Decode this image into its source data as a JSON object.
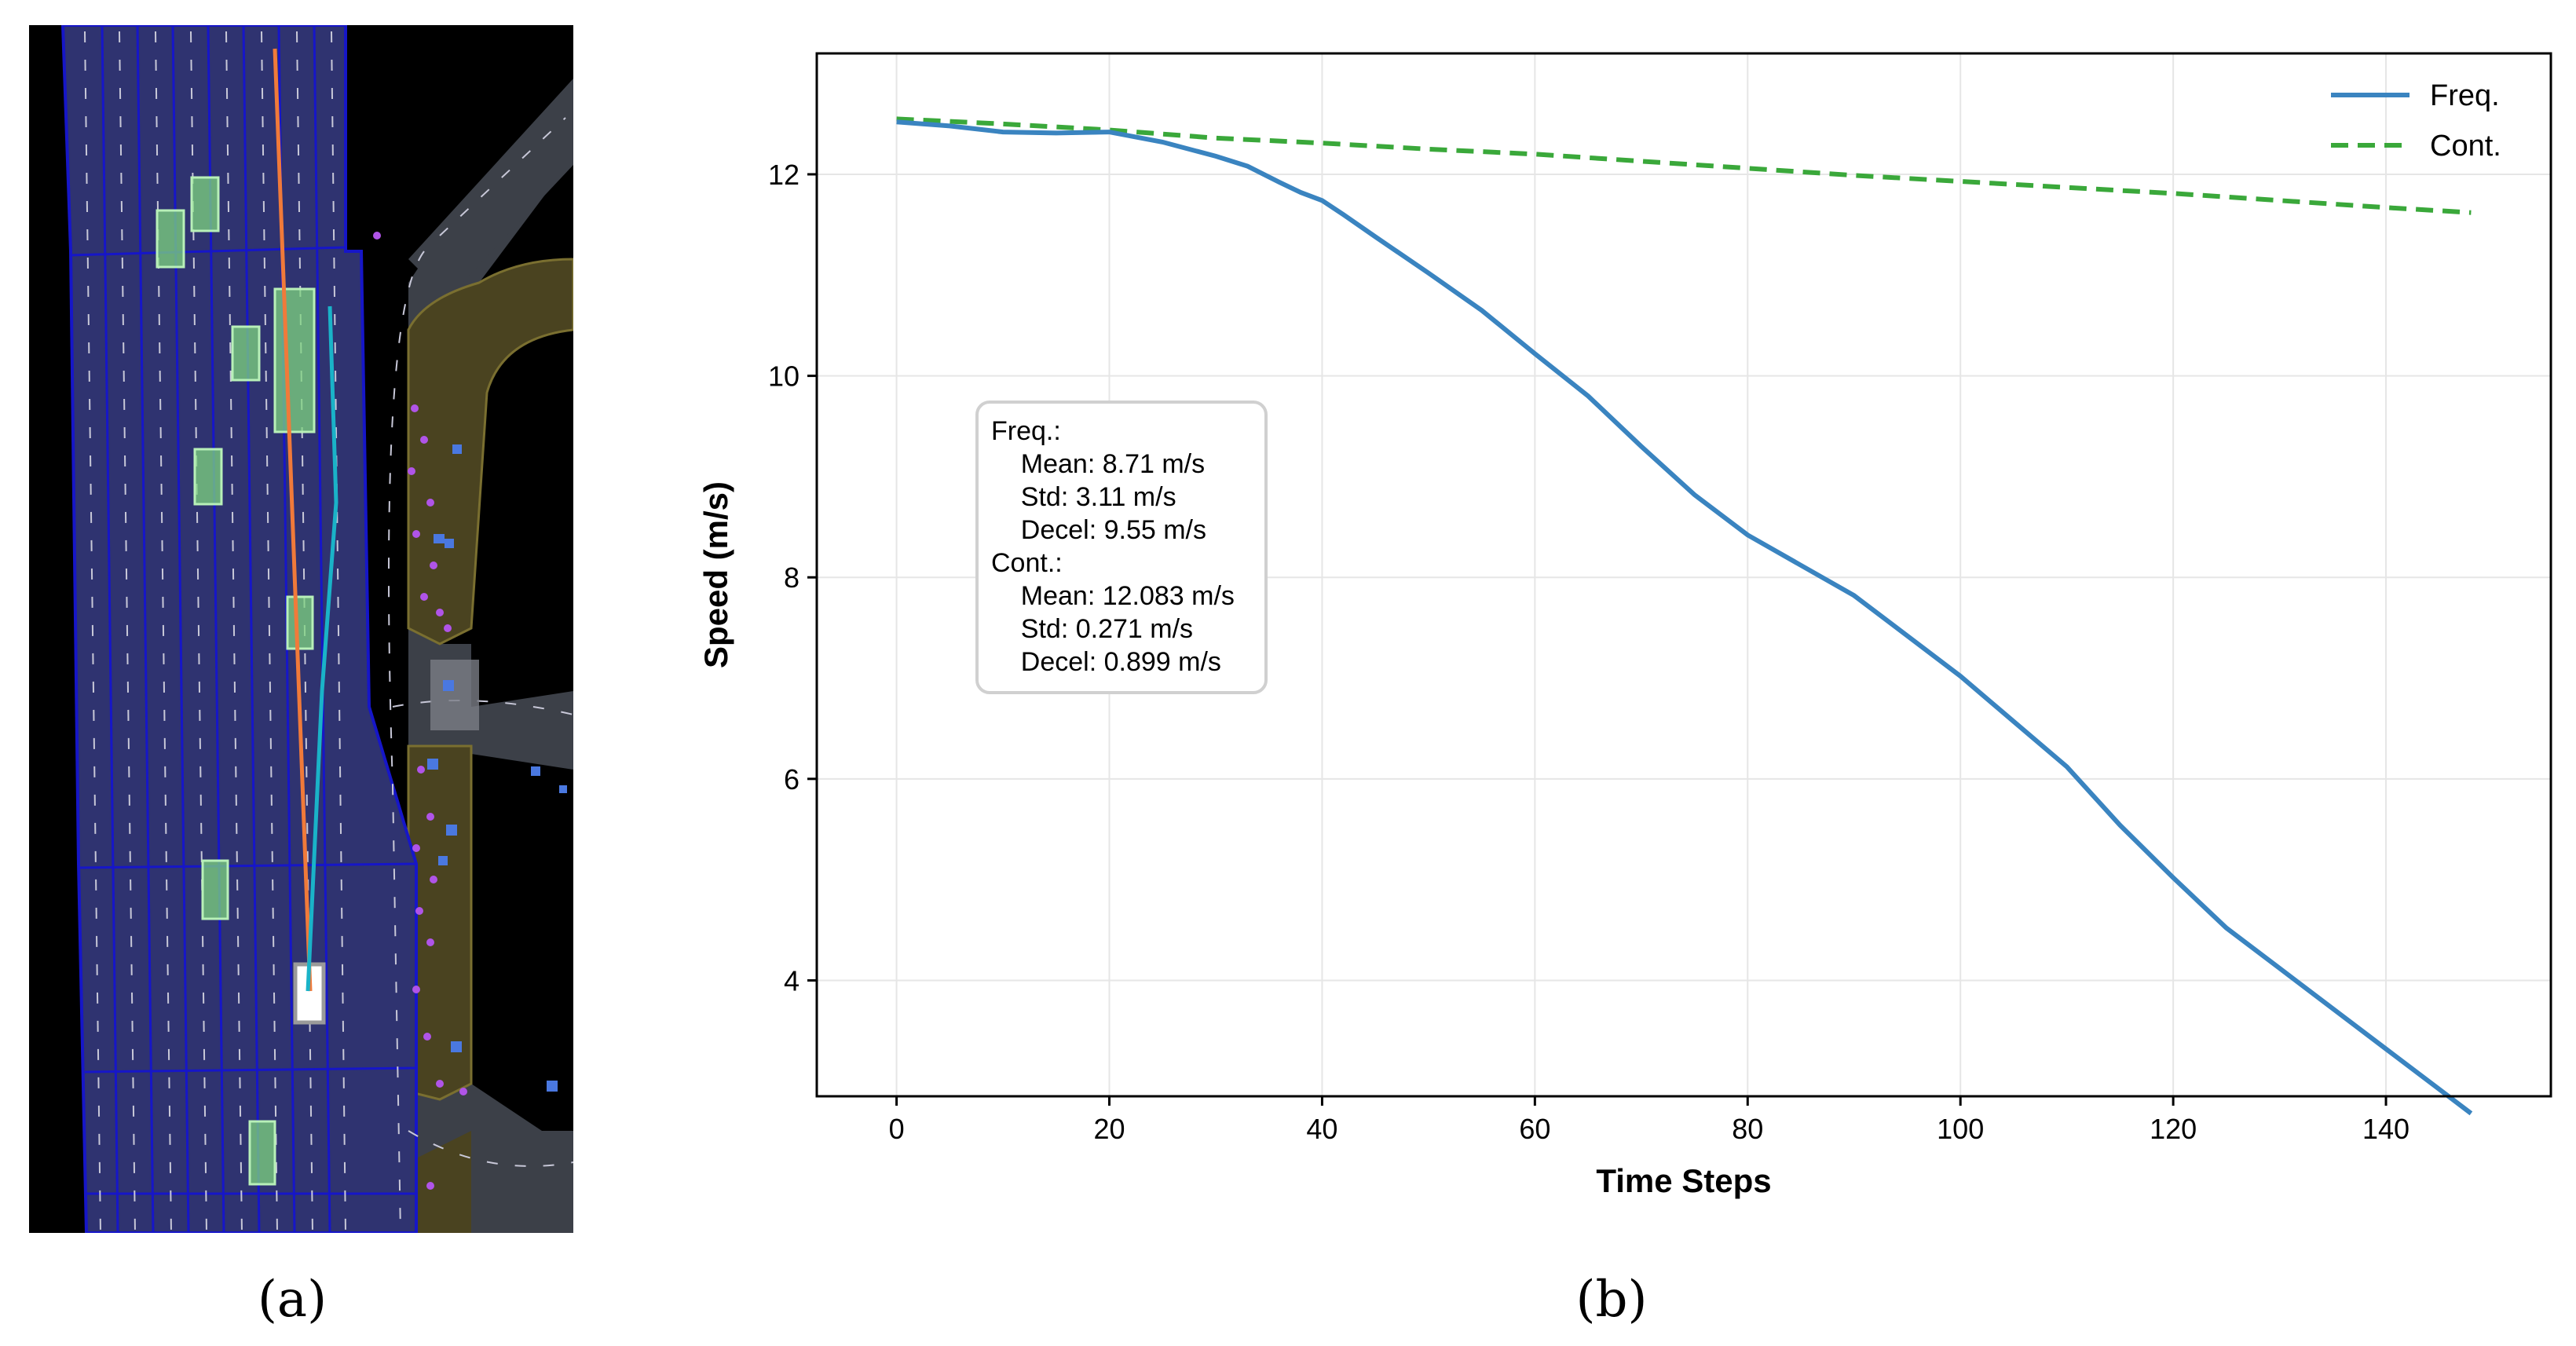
{
  "panels": {
    "a_label": "(a)",
    "b_label": "(b)"
  },
  "colors": {
    "freq": "#3a84c0",
    "cont": "#3aa83a",
    "map_bg": "#000000",
    "lane_fill": "#2f3370",
    "lane_edge": "#1616c8",
    "road_gray": "#3c4048",
    "sidewalk": "#4a4320",
    "vehicle": "#7fd67f",
    "ego_path": "#f07a3a",
    "pred_path": "#1ab3c8",
    "pedestrian": "#b054e8",
    "marker_blue": "#4a78e0"
  },
  "chart_data": {
    "type": "line",
    "title": "",
    "xlabel": "Time Steps",
    "ylabel": "Speed (m/s)",
    "xlim": [
      -7.5,
      155.5
    ],
    "ylim": [
      2.85,
      13.2
    ],
    "xticks": [
      0,
      20,
      40,
      60,
      80,
      100,
      120,
      140
    ],
    "yticks": [
      4,
      6,
      8,
      10,
      12
    ],
    "grid": true,
    "legend": "top-right",
    "series": [
      {
        "name": "Freq.",
        "style": "solid",
        "x": [
          0,
          5,
          10,
          15,
          20,
          25,
          30,
          33,
          36,
          38,
          40,
          42,
          45,
          50,
          55,
          60,
          65,
          70,
          75,
          80,
          85,
          90,
          95,
          100,
          105,
          110,
          115,
          120,
          125,
          130,
          135,
          140,
          145,
          148
        ],
        "y": [
          12.52,
          12.48,
          12.42,
          12.41,
          12.42,
          12.32,
          12.18,
          12.08,
          11.92,
          11.82,
          11.74,
          11.6,
          11.38,
          11.02,
          10.65,
          10.22,
          9.8,
          9.3,
          8.82,
          8.42,
          8.12,
          7.82,
          7.42,
          7.02,
          6.57,
          6.12,
          5.54,
          5.02,
          4.52,
          4.12,
          3.72,
          3.32,
          2.92,
          2.68
        ]
      },
      {
        "name": "Cont.",
        "style": "dashed",
        "x": [
          0,
          10,
          20,
          30,
          40,
          50,
          60,
          70,
          80,
          90,
          100,
          110,
          120,
          130,
          140,
          148
        ],
        "y": [
          12.55,
          12.5,
          12.44,
          12.36,
          12.31,
          12.25,
          12.2,
          12.13,
          12.06,
          11.99,
          11.93,
          11.87,
          11.81,
          11.74,
          11.67,
          11.62
        ]
      }
    ],
    "stats": {
      "lines": [
        "Freq.:",
        "  Mean: 8.71 m/s",
        "  Std: 3.11 m/s",
        "  Decel: 9.55 m/s",
        "Cont.:",
        "  Mean: 12.083 m/s",
        "  Std: 0.271 m/s",
        "  Decel: 0.899 m/s"
      ]
    }
  }
}
